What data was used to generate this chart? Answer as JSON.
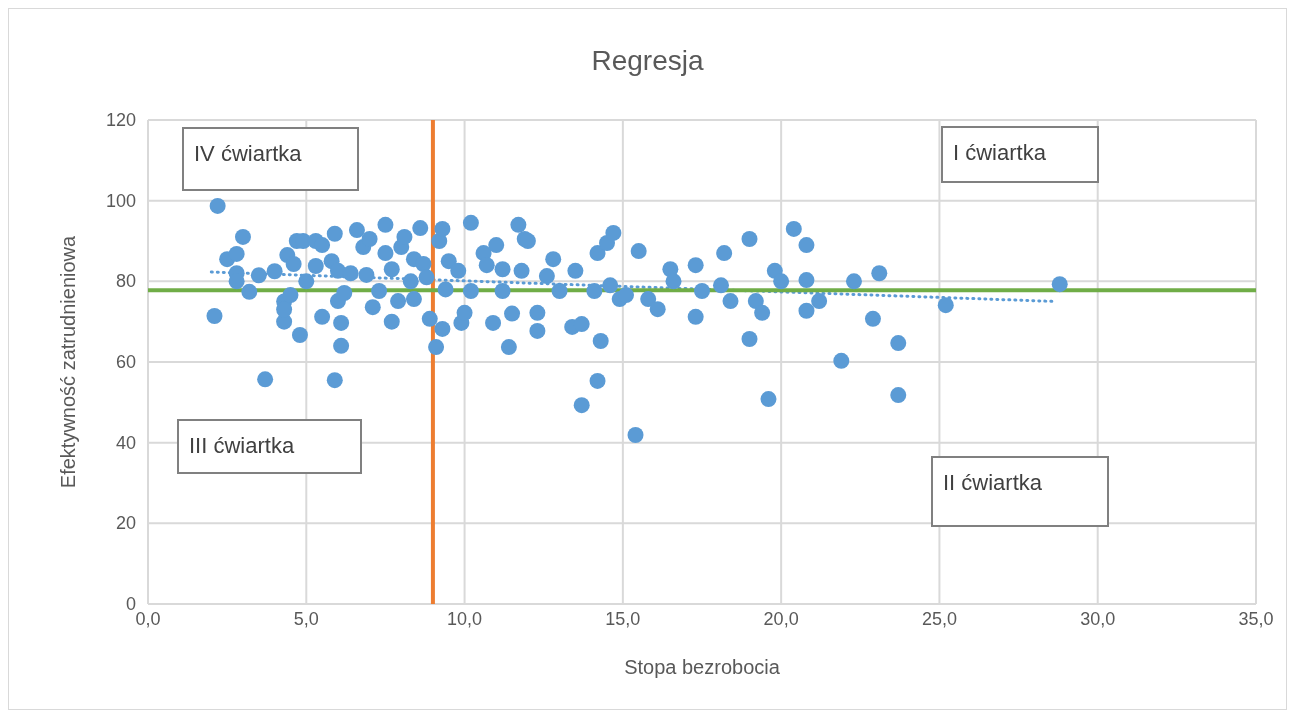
{
  "chart_data": {
    "type": "scatter",
    "title": "Regresja",
    "xlabel": "Stopa bezrobocia",
    "ylabel": "Efektywność zatrudnieniowa",
    "series": [
      {
        "color": "#5b9bd5",
        "marker": "circle",
        "x": [
          2.2,
          2.1,
          2.5,
          2.8,
          2.8,
          2.8,
          3.0,
          3.2,
          3.5,
          3.7,
          4.0,
          4.3,
          4.3,
          4.3,
          4.4,
          4.7,
          4.8,
          4.9,
          4.6,
          4.5,
          5.0,
          5.3,
          5.3,
          5.5,
          5.5,
          5.8,
          5.9,
          6.0,
          6.0,
          5.9,
          6.1,
          6.1,
          6.2,
          6.4,
          6.6,
          6.8,
          6.9,
          7.0,
          7.1,
          7.3,
          7.5,
          7.5,
          7.7,
          7.7,
          7.9,
          8.0,
          8.1,
          8.3,
          8.4,
          8.4,
          8.6,
          8.7,
          8.8,
          8.9,
          9.1,
          9.2,
          9.3,
          9.3,
          9.4,
          9.5,
          9.8,
          9.9,
          10.2,
          10.2,
          10.0,
          10.6,
          10.7,
          10.9,
          11.0,
          11.2,
          11.2,
          11.4,
          11.5,
          11.7,
          11.8,
          11.9,
          12.0,
          12.3,
          12.3,
          12.6,
          12.8,
          13.0,
          13.4,
          13.5,
          13.7,
          13.7,
          14.1,
          14.2,
          14.2,
          14.3,
          14.5,
          14.6,
          14.7,
          14.9,
          15.1,
          15.4,
          15.5,
          15.8,
          16.1,
          16.5,
          16.6,
          17.3,
          17.3,
          17.5,
          18.1,
          18.2,
          18.4,
          19.0,
          19.0,
          19.2,
          19.4,
          19.6,
          19.8,
          20.0,
          20.4,
          20.8,
          20.8,
          20.8,
          21.2,
          21.9,
          22.3,
          23.1,
          22.9,
          23.7,
          23.7,
          25.2,
          28.8
        ],
        "values": [
          98.7,
          71.4,
          85.5,
          86.8,
          82,
          80,
          91,
          77.4,
          81.5,
          55.7,
          82.5,
          75,
          70,
          73,
          86.5,
          90,
          66.7,
          90,
          84.3,
          76.6,
          80,
          90,
          83.8,
          89,
          71.2,
          85,
          91.8,
          82.6,
          75.1,
          55.5,
          64,
          69.7,
          77.1,
          82,
          92.7,
          88.5,
          81.6,
          90.5,
          73.6,
          77.6,
          94,
          87,
          70,
          83,
          75.1,
          88.5,
          91,
          80,
          85.5,
          75.6,
          93.2,
          84.3,
          81,
          70.7,
          63.7,
          90,
          93,
          68.2,
          78,
          85,
          82.6,
          69.7,
          94.5,
          77.6,
          72.2,
          87,
          84,
          69.7,
          89,
          77.6,
          83,
          63.7,
          72,
          94,
          82.6,
          90.5,
          90,
          72.2,
          67.7,
          81.3,
          85.5,
          77.6,
          68.7,
          82.6,
          69.4,
          49.3,
          77.6,
          55.3,
          87,
          65.2,
          89.5,
          79,
          92,
          75.6,
          76.6,
          41.9,
          87.5,
          75.6,
          73.1,
          83,
          80,
          71.2,
          84,
          77.6,
          79,
          87,
          75.1,
          90.5,
          65.7,
          75.1,
          72.2,
          50.8,
          82.6,
          80,
          93,
          89,
          72.7,
          80.3,
          75.1,
          60.3,
          80,
          82,
          70.7,
          64.7,
          51.8,
          74.1,
          79.3
        ]
      },
      {
        "type": "line",
        "color": "#5b9bd5",
        "marker": "none",
        "line_style": "dotted",
        "x": [
          2.0,
          28.7
        ],
        "values": [
          82.3,
          75.0
        ]
      }
    ],
    "xlim": [
      0,
      35
    ],
    "xticks": [
      {
        "value": 0,
        "label": "0,0"
      },
      {
        "value": 5,
        "label": "5,0"
      },
      {
        "value": 10,
        "label": "10,0"
      },
      {
        "value": 15,
        "label": "15,0"
      },
      {
        "value": 20,
        "label": "20,0"
      },
      {
        "value": 25,
        "label": "25,0"
      },
      {
        "value": 30,
        "label": "30,0"
      },
      {
        "value": 35,
        "label": "35,0"
      }
    ],
    "ylim": [
      0,
      120
    ],
    "yticks": [
      0,
      20,
      40,
      60,
      80,
      100,
      120
    ],
    "grid": true,
    "ref_lines": [
      {
        "axis": "x",
        "value": 9.0,
        "color": "#ed7d31"
      },
      {
        "axis": "y",
        "value": 77.8,
        "color": "#70ad47"
      }
    ],
    "annotations": [
      "IV ćwiartka",
      "I ćwiartka",
      "III ćwiartka",
      "II ćwiartka"
    ]
  }
}
